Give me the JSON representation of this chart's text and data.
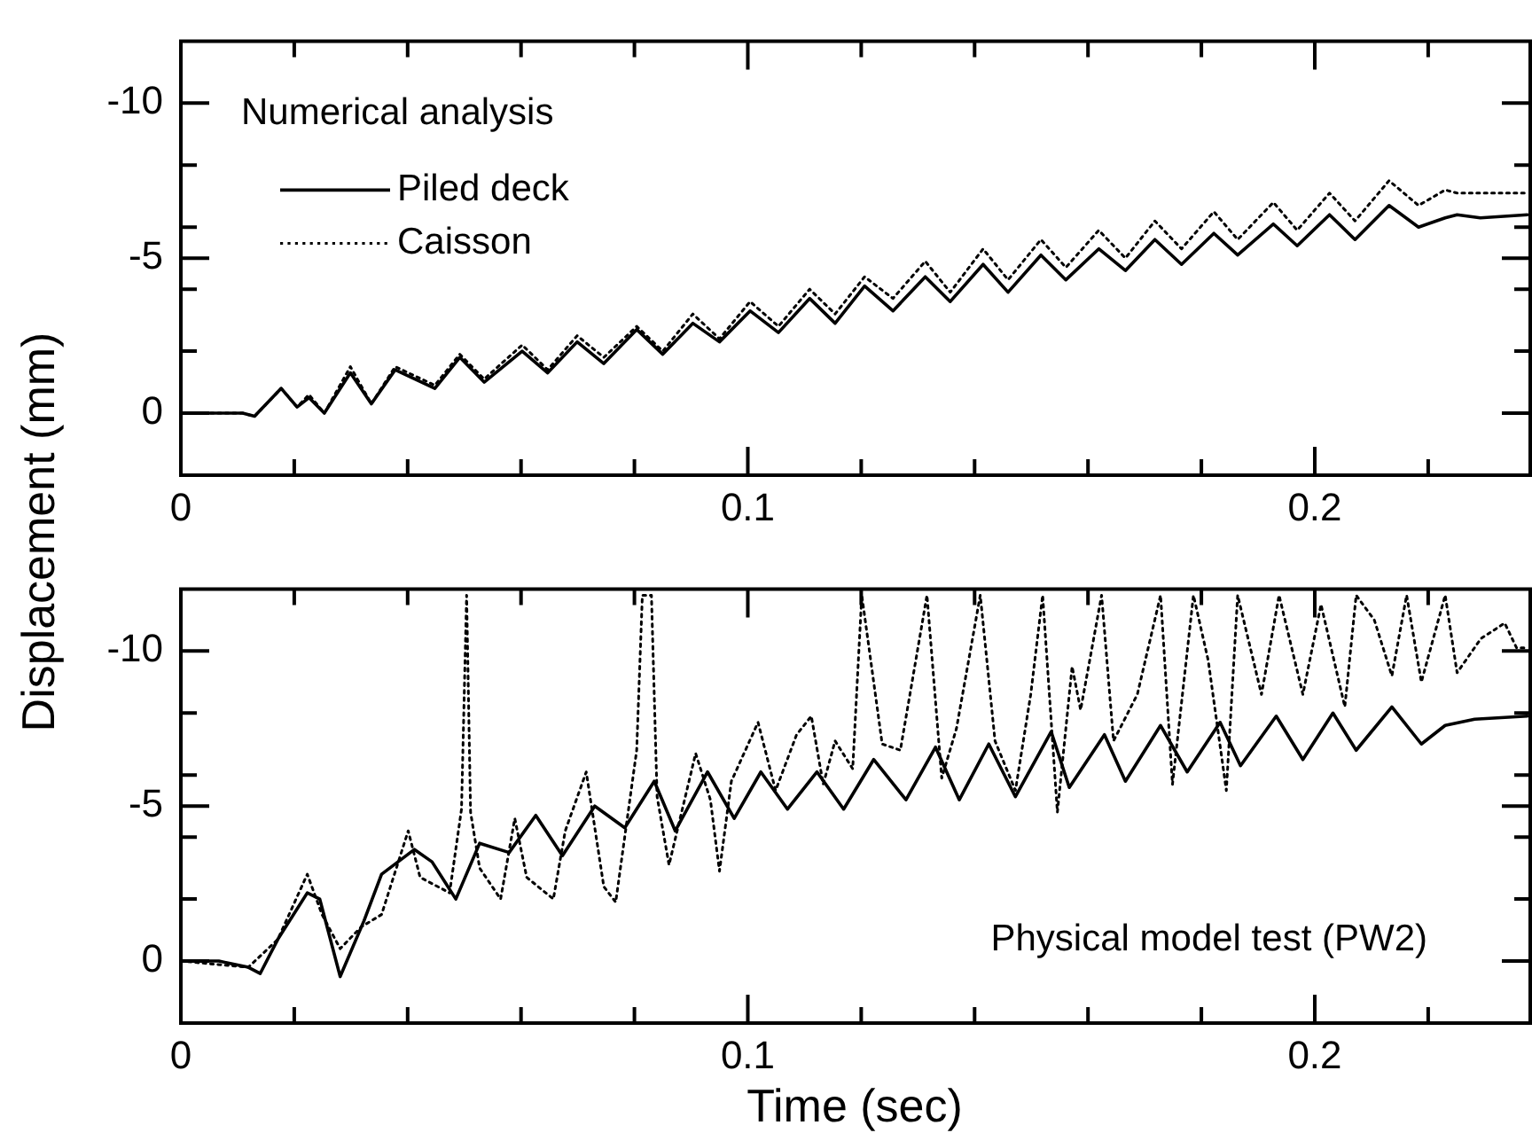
{
  "chart_data": [
    {
      "type": "line",
      "ylabel": "Displacement (mm)",
      "annotations": [
        "Numerical analysis"
      ],
      "legend": "top left",
      "marker": "none",
      "grid": false,
      "xlim": [
        0,
        0.238
      ],
      "ylim": [
        2,
        -12
      ],
      "xticks": [
        0,
        {
          "value": 0.02,
          "label": null
        },
        {
          "value": 0.04,
          "label": null
        },
        {
          "value": 0.06,
          "label": null
        },
        {
          "value": 0.08,
          "label": null
        },
        0.1,
        {
          "value": 0.12,
          "label": null
        },
        {
          "value": 0.14,
          "label": null
        },
        {
          "value": 0.16,
          "label": null
        },
        {
          "value": 0.18,
          "label": null
        },
        0.2,
        {
          "value": 0.22,
          "label": null
        }
      ],
      "yticks": [
        -10,
        {
          "value": -8,
          "label": null
        },
        {
          "value": -6,
          "label": null
        },
        -5,
        {
          "value": -4,
          "label": null
        },
        {
          "value": -2,
          "label": null
        },
        0
      ],
      "x": [
        0,
        0.0109,
        0.013,
        0.0177,
        0.0205,
        0.0226,
        0.0253,
        0.0299,
        0.0336,
        0.0378,
        0.0448,
        0.0492,
        0.0535,
        0.0602,
        0.0647,
        0.0699,
        0.0746,
        0.0804,
        0.085,
        0.0903,
        0.095,
        0.1004,
        0.1054,
        0.1109,
        0.1154,
        0.1206,
        0.1256,
        0.1313,
        0.1357,
        0.1415,
        0.1459,
        0.1517,
        0.1561,
        0.1619,
        0.1666,
        0.1718,
        0.1765,
        0.1822,
        0.1864,
        0.1927,
        0.1969,
        0.2026,
        0.2071,
        0.2131,
        0.2183,
        0.223,
        0.2251,
        0.2292,
        0.2375
      ],
      "series": [
        {
          "name": "Piled deck",
          "color": "#000000",
          "line_style": "solid",
          "values": [
            0,
            0,
            0.1,
            -0.8,
            -0.2,
            -0.5,
            0,
            -1.3,
            -0.3,
            -1.4,
            -0.8,
            -1.8,
            -1.0,
            -2.0,
            -1.3,
            -2.3,
            -1.6,
            -2.7,
            -1.9,
            -2.9,
            -2.3,
            -3.3,
            -2.6,
            -3.7,
            -2.9,
            -4.1,
            -3.3,
            -4.4,
            -3.6,
            -4.8,
            -3.9,
            -5.1,
            -4.3,
            -5.3,
            -4.6,
            -5.6,
            -4.8,
            -5.8,
            -5.1,
            -6.1,
            -5.4,
            -6.4,
            -5.6,
            -6.7,
            -6.0,
            -6.3,
            -6.4,
            -6.3,
            -6.4
          ]
        },
        {
          "name": "Caisson",
          "color": "#000000",
          "line_style": "dotted",
          "values": [
            0,
            0,
            0.1,
            -0.8,
            -0.2,
            -0.6,
            0,
            -1.5,
            -0.3,
            -1.5,
            -0.9,
            -1.9,
            -1.1,
            -2.2,
            -1.4,
            -2.5,
            -1.8,
            -2.8,
            -2.0,
            -3.2,
            -2.4,
            -3.6,
            -2.8,
            -4.0,
            -3.2,
            -4.4,
            -3.7,
            -4.9,
            -3.9,
            -5.3,
            -4.3,
            -5.6,
            -4.7,
            -5.9,
            -5.0,
            -6.2,
            -5.3,
            -6.5,
            -5.6,
            -6.8,
            -5.9,
            -7.1,
            -6.2,
            -7.5,
            -6.7,
            -7.2,
            -7.1,
            -7.1,
            -7.1
          ]
        }
      ]
    },
    {
      "type": "line",
      "xlabel": "Time (sec)",
      "annotations": [
        "Physical model test (PW2)"
      ],
      "marker": "none",
      "grid": false,
      "xlim": [
        0,
        0.238
      ],
      "ylim": [
        2,
        -12
      ],
      "xticks": [
        0,
        {
          "value": 0.02,
          "label": null
        },
        {
          "value": 0.04,
          "label": null
        },
        {
          "value": 0.06,
          "label": null
        },
        {
          "value": 0.08,
          "label": null
        },
        0.1,
        {
          "value": 0.12,
          "label": null
        },
        {
          "value": 0.14,
          "label": null
        },
        {
          "value": 0.16,
          "label": null
        },
        {
          "value": 0.18,
          "label": null
        },
        0.2,
        {
          "value": 0.22,
          "label": null
        }
      ],
      "yticks": [
        -10,
        {
          "value": -8,
          "label": null
        },
        {
          "value": -6,
          "label": null
        },
        -5,
        {
          "value": -4,
          "label": null
        },
        {
          "value": -2,
          "label": null
        },
        0
      ],
      "series": [
        {
          "color": "#000000",
          "line_style": "solid",
          "x": [
            0,
            0.0067,
            0.0119,
            0.014,
            0.0171,
            0.0223,
            0.0245,
            0.0281,
            0.0323,
            0.0354,
            0.0412,
            0.0443,
            0.0485,
            0.0527,
            0.0579,
            0.0626,
            0.0673,
            0.073,
            0.0783,
            0.0835,
            0.0872,
            0.0929,
            0.0976,
            0.1023,
            0.107,
            0.1122,
            0.1169,
            0.1222,
            0.1279,
            0.1331,
            0.1373,
            0.1425,
            0.1472,
            0.1535,
            0.1567,
            0.1629,
            0.1666,
            0.1728,
            0.1775,
            0.1833,
            0.1869,
            0.1932,
            0.1979,
            0.2032,
            0.2073,
            0.2136,
            0.2188,
            0.223,
            0.2282,
            0.2375
          ],
          "values": [
            0,
            0,
            0.2,
            0.4,
            -0.7,
            -2.2,
            -2.0,
            0.5,
            -1.3,
            -2.8,
            -3.6,
            -3.2,
            -2.0,
            -3.8,
            -3.5,
            -4.7,
            -3.4,
            -5.0,
            -4.3,
            -5.8,
            -4.2,
            -6.1,
            -4.6,
            -6.1,
            -4.9,
            -6.1,
            -4.9,
            -6.5,
            -5.2,
            -6.9,
            -5.2,
            -7.0,
            -5.3,
            -7.4,
            -5.6,
            -7.3,
            -5.8,
            -7.6,
            -6.1,
            -7.7,
            -6.3,
            -7.9,
            -6.5,
            -8.0,
            -6.8,
            -8.2,
            -7.0,
            -7.6,
            -7.8,
            -7.9
          ]
        },
        {
          "color": "#000000",
          "line_style": "dotted",
          "x": [
            0,
            0.0119,
            0.0171,
            0.0223,
            0.0249,
            0.0281,
            0.0318,
            0.0354,
            0.0401,
            0.0422,
            0.0474,
            0.0495,
            0.0504,
            0.0511,
            0.0527,
            0.0564,
            0.0589,
            0.061,
            0.0657,
            0.0678,
            0.0715,
            0.0746,
            0.0767,
            0.0804,
            0.0814,
            0.083,
            0.084,
            0.0861,
            0.0908,
            0.0934,
            0.095,
            0.0971,
            0.1018,
            0.1049,
            0.1086,
            0.1112,
            0.1133,
            0.1154,
            0.1185,
            0.1201,
            0.1237,
            0.1269,
            0.1316,
            0.1342,
            0.1368,
            0.141,
            0.1436,
            0.1472,
            0.1499,
            0.152,
            0.1546,
            0.1572,
            0.1587,
            0.1624,
            0.1645,
            0.1687,
            0.1728,
            0.1749,
            0.1786,
            0.1812,
            0.1844,
            0.1864,
            0.1906,
            0.1937,
            0.1979,
            0.2011,
            0.2053,
            0.2073,
            0.2105,
            0.2136,
            0.2162,
            0.2188,
            0.223,
            0.2251,
            0.2293,
            0.2335,
            0.2356,
            0.2375
          ],
          "values": [
            0,
            0.2,
            -0.7,
            -2.8,
            -1.5,
            -0.4,
            -1.1,
            -1.5,
            -4.2,
            -2.7,
            -2.2,
            -4.9,
            -11.8,
            -4.8,
            -3.0,
            -2.0,
            -4.6,
            -2.7,
            -2.0,
            -4.2,
            -6.1,
            -2.4,
            -1.9,
            -6.8,
            -11.8,
            -11.8,
            -5.3,
            -3.1,
            -6.7,
            -5.2,
            -2.9,
            -5.8,
            -7.7,
            -5.5,
            -7.3,
            -7.9,
            -5.7,
            -7.1,
            -6.2,
            -11.8,
            -7.0,
            -6.8,
            -11.8,
            -5.9,
            -7.5,
            -11.8,
            -7.1,
            -5.5,
            -8.6,
            -11.8,
            -4.8,
            -9.5,
            -8.1,
            -11.8,
            -7.1,
            -8.6,
            -11.8,
            -5.7,
            -11.8,
            -9.7,
            -5.5,
            -11.8,
            -8.6,
            -11.8,
            -8.6,
            -11.5,
            -8.2,
            -11.8,
            -11.0,
            -9.2,
            -11.8,
            -9.0,
            -11.8,
            -9.3,
            -10.4,
            -10.9,
            -10.1,
            -10.1
          ]
        }
      ]
    }
  ]
}
